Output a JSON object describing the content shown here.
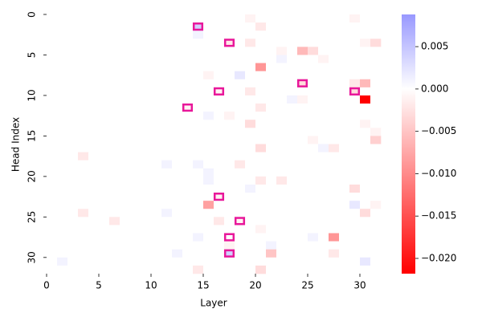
{
  "chart_data": {
    "type": "heatmap",
    "xlabel": "Layer",
    "ylabel": "Head Index",
    "xlim": [
      0,
      32
    ],
    "ylim": [
      32,
      0
    ],
    "xticks": [
      0,
      5,
      10,
      15,
      20,
      25,
      30
    ],
    "yticks": [
      0,
      5,
      10,
      15,
      20,
      25,
      30
    ],
    "colormap": {
      "negative": "#ff0000",
      "zero": "#ffffff",
      "positive": "#0000ff"
    },
    "colorbar": {
      "lim": [
        -0.0218,
        0.0088
      ],
      "ticks": [
        {
          "value": 0.005,
          "label": "0.005"
        },
        {
          "value": 0,
          "label": "0.000"
        },
        {
          "value": -0.005,
          "label": "−0.005"
        },
        {
          "value": -0.01,
          "label": "−0.010"
        },
        {
          "value": -0.015,
          "label": "−0.015"
        },
        {
          "value": -0.02,
          "label": "−0.020"
        }
      ]
    },
    "highlight_color": "#e8179a",
    "highlights": [
      {
        "layer": 14,
        "head": 1
      },
      {
        "layer": 17,
        "head": 3
      },
      {
        "layer": 24,
        "head": 8
      },
      {
        "layer": 16,
        "head": 9
      },
      {
        "layer": 29,
        "head": 9
      },
      {
        "layer": 13,
        "head": 11
      },
      {
        "layer": 16,
        "head": 22
      },
      {
        "layer": 18,
        "head": 25
      },
      {
        "layer": 17,
        "head": 27
      },
      {
        "layer": 17,
        "head": 29
      }
    ],
    "z": [
      [
        0,
        0,
        0,
        0,
        0,
        0,
        0,
        0,
        0,
        0,
        0,
        0,
        0,
        0,
        0,
        0,
        0,
        0,
        0,
        -0.001,
        0,
        0,
        0,
        0,
        0,
        0,
        0,
        0,
        0,
        -0.001,
        0,
        0
      ],
      [
        0,
        0,
        0,
        0,
        0,
        0,
        0,
        0,
        0,
        0,
        0,
        0,
        0,
        0,
        0.004,
        0,
        0,
        0,
        0,
        0,
        -0.002,
        0,
        0,
        0,
        0,
        0,
        0,
        0,
        0,
        0,
        0,
        0
      ],
      [
        0,
        0,
        0,
        0,
        0,
        0,
        0,
        0,
        0,
        0,
        0,
        0,
        0,
        0,
        0.001,
        0,
        0,
        0,
        0,
        0,
        0,
        0,
        0,
        0,
        0,
        0,
        0,
        0,
        0,
        0,
        0,
        0
      ],
      [
        0,
        0,
        0,
        0,
        0,
        0,
        0,
        0,
        0,
        0,
        0,
        0,
        0,
        0,
        0,
        0,
        0,
        -0.002,
        0,
        -0.002,
        0,
        0,
        0,
        0,
        0,
        0,
        0,
        0,
        0,
        0,
        -0.001,
        -0.003
      ],
      [
        0,
        0,
        0,
        0,
        0,
        0,
        0,
        0,
        0,
        0,
        0,
        0,
        0,
        0,
        0,
        0,
        0,
        0,
        0,
        0,
        0,
        0,
        -0.001,
        0,
        -0.006,
        -0.003,
        0,
        0,
        0,
        0,
        0,
        0
      ],
      [
        0,
        0,
        0,
        0,
        0,
        0,
        0,
        0,
        0,
        0,
        0,
        0,
        0,
        0,
        0,
        0,
        0,
        0,
        0,
        0,
        0,
        0,
        0.001,
        0,
        0,
        0,
        -0.001,
        0,
        0,
        0,
        0,
        0
      ],
      [
        0,
        0,
        0,
        0,
        0,
        0,
        0,
        0,
        0,
        0,
        0,
        0,
        0,
        0,
        0,
        0,
        0,
        0,
        0,
        0,
        -0.009,
        0,
        0,
        0,
        0,
        0,
        0,
        0,
        0,
        0,
        0,
        0
      ],
      [
        0,
        0,
        0,
        0,
        0,
        0,
        0,
        0,
        0,
        0,
        0,
        0,
        0,
        0,
        0,
        -0.001,
        0,
        0,
        0.002,
        0,
        0,
        0,
        0,
        0,
        0,
        0,
        0,
        0,
        0,
        0,
        0,
        0
      ],
      [
        0,
        0,
        0,
        0,
        0,
        0,
        0,
        0,
        0,
        0,
        0,
        0,
        0,
        0,
        0,
        0,
        0,
        0,
        0,
        0,
        0,
        0,
        0,
        0,
        -0.003,
        0,
        0,
        0,
        0,
        -0.002,
        -0.006,
        0
      ],
      [
        0,
        0,
        0,
        0,
        0,
        0,
        0,
        0,
        0,
        0,
        0,
        0,
        0,
        0,
        0,
        0,
        -0.001,
        0,
        0,
        -0.002,
        0,
        0,
        0,
        0,
        0,
        0,
        0,
        0,
        0,
        -0.003,
        0,
        0
      ],
      [
        0,
        0,
        0,
        0,
        0,
        0,
        0,
        0,
        0,
        0,
        0,
        0,
        0,
        0,
        0,
        0,
        0,
        0,
        0,
        0,
        0,
        0,
        0,
        0.001,
        -0.001,
        0,
        0,
        0,
        0,
        0,
        -0.022,
        0
      ],
      [
        0,
        0,
        0,
        0,
        0,
        0,
        0,
        0,
        0,
        0,
        0,
        0,
        0,
        -0.001,
        0,
        0,
        0,
        0,
        0,
        0,
        -0.002,
        0,
        0,
        0,
        0,
        0,
        0,
        0,
        0,
        0,
        0,
        0
      ],
      [
        0,
        0,
        0,
        0,
        0,
        0,
        0,
        0,
        0,
        0,
        0,
        0,
        0,
        0,
        0,
        0.001,
        0,
        -0.001,
        0,
        0,
        0,
        0,
        0,
        0,
        0,
        0,
        0,
        0,
        0,
        0,
        0,
        0
      ],
      [
        0,
        0,
        0,
        0,
        0,
        0,
        0,
        0,
        0,
        0,
        0,
        0,
        0,
        0,
        0,
        0,
        0,
        0,
        0,
        -0.003,
        0,
        0,
        0,
        0,
        0,
        0,
        0,
        0,
        0,
        0,
        -0.001,
        0
      ],
      [
        0,
        0,
        0,
        0,
        0,
        0,
        0,
        0,
        0,
        0,
        0,
        0,
        0,
        0,
        0,
        0,
        0,
        0,
        0,
        0,
        0,
        0,
        0,
        0,
        0,
        0,
        0,
        0,
        0,
        0,
        0,
        -0.001
      ],
      [
        0,
        0,
        0,
        0,
        0,
        0,
        0,
        0,
        0,
        0,
        0,
        0,
        0,
        0,
        0,
        0,
        0,
        0,
        0,
        0,
        0,
        0,
        0,
        0,
        0,
        -0.001,
        0,
        0,
        0,
        0,
        0,
        -0.004
      ],
      [
        0,
        0,
        0,
        0,
        0,
        0,
        0,
        0,
        0,
        0,
        0,
        0,
        0,
        0,
        0,
        0,
        0,
        0,
        0,
        0,
        -0.003,
        0,
        0,
        0,
        0,
        0,
        0.001,
        -0.002,
        0,
        0,
        0,
        0
      ],
      [
        0,
        0,
        0,
        -0.002,
        0,
        0,
        0,
        0,
        0,
        0,
        0,
        0,
        0,
        0,
        0,
        0,
        0,
        0,
        0,
        0,
        0,
        0,
        0,
        0,
        0,
        0,
        0,
        0,
        0,
        0,
        0,
        0
      ],
      [
        0,
        0,
        0,
        0,
        0,
        0,
        0,
        0,
        0,
        0,
        0,
        0.001,
        0,
        0,
        0.001,
        0,
        0,
        0,
        -0.002,
        0,
        0,
        0,
        0,
        0,
        0,
        0,
        0,
        0,
        0,
        0,
        0,
        0
      ],
      [
        0,
        0,
        0,
        0,
        0,
        0,
        0,
        0,
        0,
        0,
        0,
        0,
        0,
        0,
        0,
        0.001,
        0,
        0,
        0,
        0,
        0,
        0,
        0,
        0,
        0,
        0,
        0,
        0,
        0,
        0,
        0,
        0
      ],
      [
        0,
        0,
        0,
        0,
        0,
        0,
        0,
        0,
        0,
        0,
        0,
        0,
        0,
        0,
        0,
        0.001,
        0,
        0,
        0,
        0,
        -0.002,
        0,
        -0.002,
        0,
        0,
        0,
        0,
        0,
        0,
        0,
        0,
        0
      ],
      [
        0,
        0,
        0,
        0,
        0,
        0,
        0,
        0,
        0,
        0,
        0,
        0,
        0,
        0,
        0,
        0,
        0,
        0,
        0,
        0.001,
        0,
        0,
        0,
        0,
        0,
        0,
        0,
        0,
        0,
        -0.003,
        0,
        0
      ],
      [
        0,
        0,
        0,
        0,
        0,
        0,
        0,
        0,
        0,
        0,
        0,
        0,
        0,
        0,
        0,
        0,
        -0.001,
        0,
        0,
        0,
        0,
        0,
        0,
        0,
        0,
        0,
        0,
        0,
        0,
        0,
        0,
        0
      ],
      [
        0,
        0,
        0,
        0,
        0,
        0,
        0,
        0,
        0,
        0,
        0,
        0,
        0,
        0,
        0,
        -0.008,
        0,
        0,
        0,
        0,
        0,
        0,
        0,
        0,
        0,
        0,
        0,
        0,
        0,
        0.002,
        0,
        -0.001
      ],
      [
        0,
        0,
        0,
        -0.002,
        0,
        0,
        0,
        0,
        0,
        0,
        0,
        0.001,
        0,
        0,
        0,
        0,
        0,
        0,
        0,
        0,
        0,
        0,
        0,
        0,
        0,
        0,
        0,
        0,
        0,
        0,
        -0.003,
        0
      ],
      [
        0,
        0,
        0,
        0,
        0,
        0,
        -0.002,
        0,
        0,
        0,
        0,
        0,
        0,
        0,
        0,
        0,
        -0.002,
        0,
        -0.001,
        0,
        0,
        0,
        0,
        0,
        0,
        0,
        0,
        0,
        0,
        0,
        0,
        0
      ],
      [
        0,
        0,
        0,
        0,
        0,
        0,
        0,
        0,
        0,
        0,
        0,
        0,
        0,
        0,
        0,
        0,
        0,
        0,
        0,
        0,
        -0.001,
        0,
        0,
        0,
        0,
        0,
        0,
        0,
        0,
        0,
        0,
        0
      ],
      [
        0,
        0,
        0,
        0,
        0,
        0,
        0,
        0,
        0,
        0,
        0,
        0,
        0,
        0,
        0.001,
        0,
        0,
        0,
        0,
        0,
        0,
        0,
        0,
        0,
        0,
        0.001,
        0,
        -0.009,
        0,
        0,
        0,
        0
      ],
      [
        0,
        0,
        0,
        0,
        0,
        0,
        0,
        0,
        0,
        0,
        0,
        0,
        0,
        0,
        0,
        0,
        0,
        -0.001,
        0,
        0,
        0,
        0.001,
        0,
        0,
        0,
        0,
        0,
        0,
        0,
        0,
        0,
        0
      ],
      [
        0,
        0,
        0,
        0,
        0,
        0,
        0,
        0,
        0,
        0,
        0,
        0,
        0.001,
        0,
        0,
        0,
        0,
        0.004,
        0,
        0,
        0,
        -0.005,
        0,
        0,
        0,
        0,
        0,
        -0.002,
        0,
        0,
        0,
        0
      ],
      [
        0,
        0.001,
        0,
        0,
        0,
        0,
        0,
        0,
        0,
        0,
        0,
        0,
        0,
        0,
        0,
        0,
        0,
        0,
        0,
        0,
        0,
        0,
        0,
        0,
        0,
        0,
        0,
        0,
        0,
        0,
        0.002,
        0
      ],
      [
        0,
        0,
        0,
        0,
        0,
        0,
        0,
        0,
        0,
        0,
        0,
        0,
        0,
        0,
        -0.002,
        0,
        0,
        0,
        0,
        0,
        -0.003,
        0,
        0,
        0,
        0,
        0,
        0,
        0,
        0,
        0,
        0,
        0
      ]
    ]
  }
}
